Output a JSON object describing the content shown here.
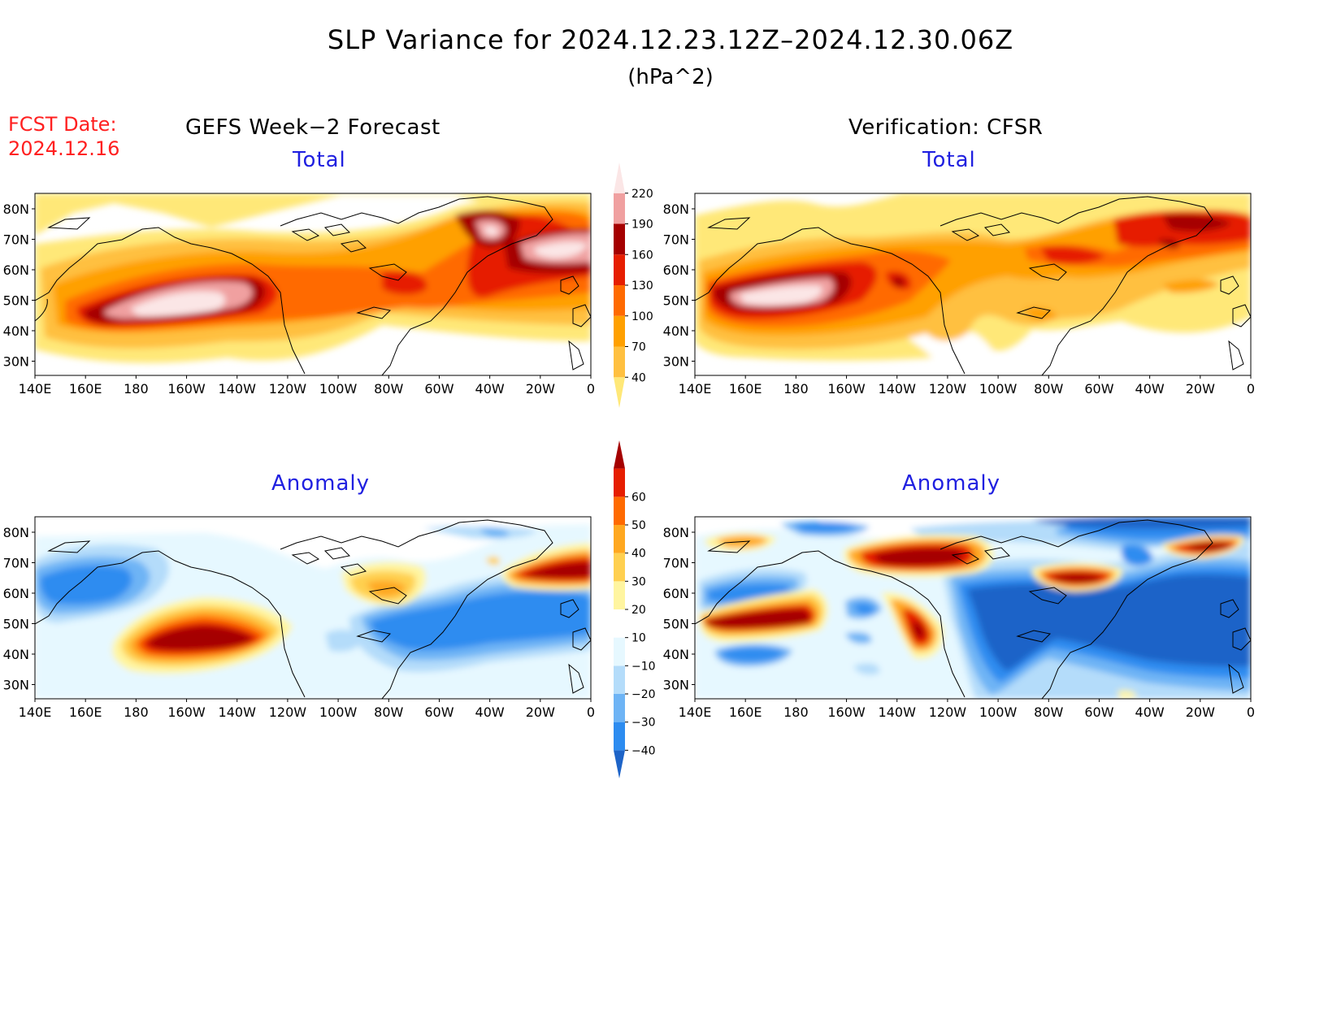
{
  "title": "SLP Variance for 2024.12.23.12Z–2024.12.30.06Z",
  "units": "(hPa^2)",
  "forecast_date": {
    "label": "FCST Date:",
    "value": "2024.12.16"
  },
  "columns": {
    "left": "GEFS Week−2 Forecast",
    "right": "Verification: CFSR"
  },
  "panels": [
    {
      "id": "fcst-total",
      "subtitle": "Total",
      "kind": "total"
    },
    {
      "id": "verif-total",
      "subtitle": "Total",
      "kind": "total"
    },
    {
      "id": "fcst-anom",
      "subtitle": "Anomaly",
      "kind": "anomaly"
    },
    {
      "id": "verif-anom",
      "subtitle": "Anomaly",
      "kind": "anomaly"
    }
  ],
  "axes": {
    "lat_labels": [
      "80N",
      "70N",
      "60N",
      "50N",
      "40N",
      "30N"
    ],
    "lon_labels": [
      "140E",
      "160E",
      "180",
      "160W",
      "140W",
      "120W",
      "100W",
      "80W",
      "60W",
      "40W",
      "20W",
      "0"
    ]
  },
  "colorbars": {
    "total": {
      "levels": [
        "40",
        "70",
        "100",
        "130",
        "160",
        "190",
        "220"
      ],
      "colors": [
        "#ffe878",
        "#ffc040",
        "#ffa000",
        "#ff6a00",
        "#e61e00",
        "#a50000",
        "#f0a0a0",
        "#fbe6e6"
      ]
    },
    "anomaly": {
      "levels": [
        "−40",
        "−30",
        "−20",
        "−10",
        "10",
        "20",
        "30",
        "40",
        "50",
        "60"
      ],
      "colors": [
        "#1e64c8",
        "#2d8cf0",
        "#6eb4f5",
        "#b4dcfa",
        "#e6f8ff",
        "#ffffff",
        "#fff5a0",
        "#ffd050",
        "#ffa820",
        "#ff6a00",
        "#e61e00",
        "#a50000"
      ]
    }
  }
}
